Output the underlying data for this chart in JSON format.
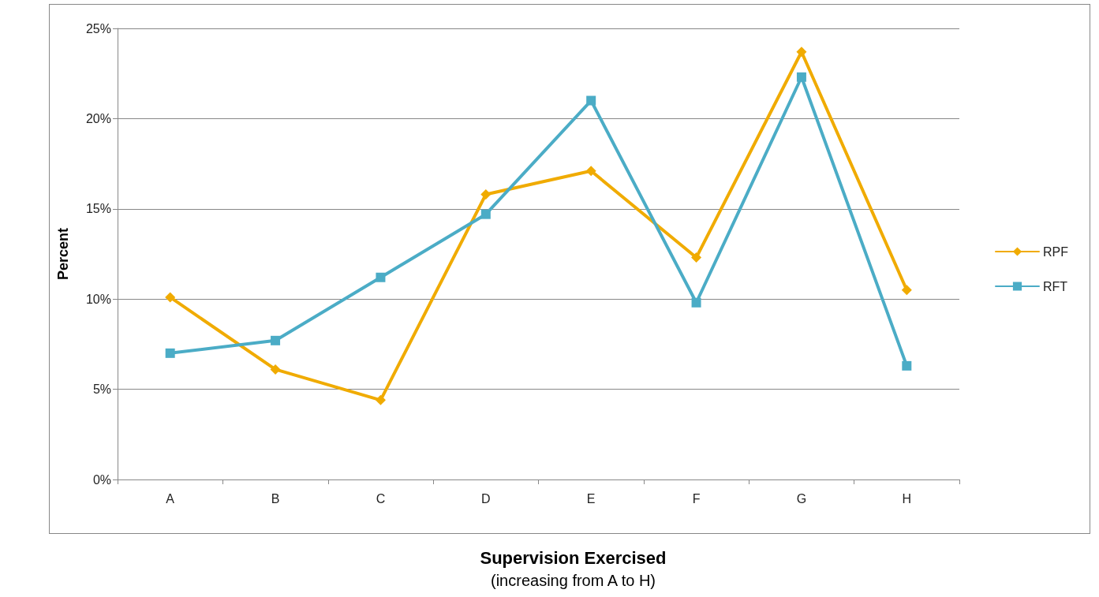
{
  "chart_data": {
    "type": "line",
    "xlabel": "Supervision Exercised",
    "ylabel": "Percent",
    "annotations": [
      "(increasing from A to H)"
    ],
    "categories": [
      "A",
      "B",
      "C",
      "D",
      "E",
      "F",
      "G",
      "H"
    ],
    "series": [
      {
        "name": "RPF",
        "color": "#f0ab00",
        "marker": "diamond",
        "values": [
          10.1,
          6.1,
          4.4,
          15.8,
          17.1,
          12.3,
          23.7,
          10.5
        ]
      },
      {
        "name": "RFT",
        "color": "#4bacc6",
        "marker": "square",
        "values": [
          7.0,
          7.7,
          11.2,
          14.7,
          21.0,
          9.8,
          22.3,
          6.3
        ]
      }
    ],
    "ylim": [
      0,
      25
    ],
    "yticks": [
      {
        "value": 0,
        "label": "0%"
      },
      {
        "value": 5,
        "label": "5%"
      },
      {
        "value": 10,
        "label": "10%"
      },
      {
        "value": 15,
        "label": "15%"
      },
      {
        "value": 20,
        "label": "20%"
      },
      {
        "value": 25,
        "label": "25%"
      }
    ],
    "grid": "y",
    "legend": "right",
    "line_style": "solid"
  }
}
